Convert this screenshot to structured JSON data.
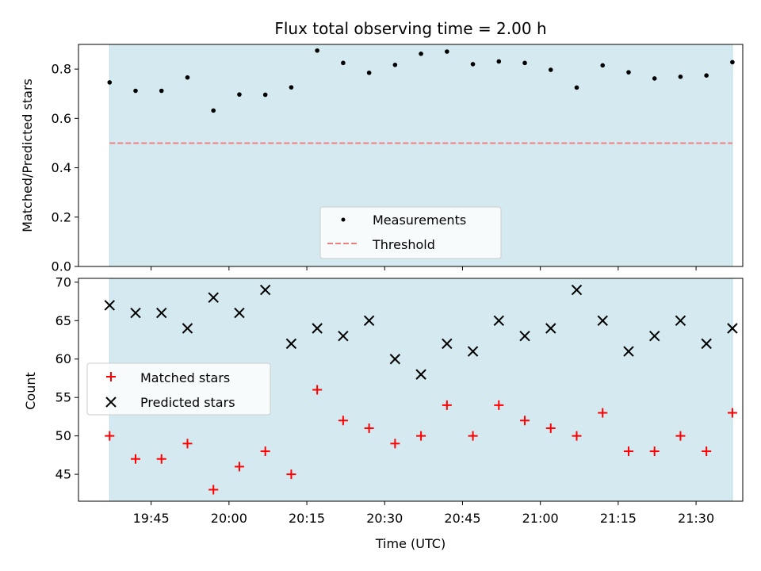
{
  "chart_data": [
    {
      "type": "scatter",
      "title": "Flux total observing time = 2.00 h",
      "xlabel": "",
      "ylabel": "Matched/Predicted stars",
      "ylim": [
        0,
        0.9
      ],
      "yticks": [
        "0.0",
        "0.2",
        "0.4",
        "0.6",
        "0.8"
      ],
      "observing_window": [
        "19:37",
        "21:37"
      ],
      "legend_position": "lower-center",
      "series": [
        {
          "name": "Measurements",
          "marker": "dot",
          "color": "#000000",
          "x": [
            "19:37",
            "19:42",
            "19:47",
            "19:52",
            "19:57",
            "20:02",
            "20:07",
            "20:12",
            "20:17",
            "20:22",
            "20:27",
            "20:32",
            "20:37",
            "20:42",
            "20:47",
            "20:52",
            "20:57",
            "21:02",
            "21:07",
            "21:12",
            "21:17",
            "21:22",
            "21:27",
            "21:32",
            "21:37"
          ],
          "values": [
            0.746,
            0.712,
            0.712,
            0.766,
            0.632,
            0.697,
            0.696,
            0.726,
            0.875,
            0.825,
            0.785,
            0.817,
            0.862,
            0.871,
            0.82,
            0.831,
            0.825,
            0.797,
            0.725,
            0.815,
            0.787,
            0.762,
            0.769,
            0.774,
            0.828
          ]
        },
        {
          "name": "Threshold",
          "marker": "dashed-line",
          "color": "#f08080",
          "x": [
            "19:37",
            "21:37"
          ],
          "values": [
            0.5,
            0.5
          ]
        }
      ]
    },
    {
      "type": "scatter",
      "title": "",
      "xlabel": "Time (UTC)",
      "ylabel": "Count",
      "ylim": [
        41.5,
        70.5
      ],
      "yticks": [
        "45",
        "50",
        "55",
        "60",
        "65",
        "70"
      ],
      "xticks": [
        "19:45",
        "20:00",
        "20:15",
        "20:30",
        "20:45",
        "21:00",
        "21:15",
        "21:30"
      ],
      "xlim": [
        "19:31",
        "21:39"
      ],
      "observing_window": [
        "19:37",
        "21:37"
      ],
      "legend_position": "center-left",
      "series": [
        {
          "name": "Matched stars",
          "marker": "plus",
          "color": "#ff0000",
          "x": [
            "19:37",
            "19:42",
            "19:47",
            "19:52",
            "19:57",
            "20:02",
            "20:07",
            "20:12",
            "20:17",
            "20:22",
            "20:27",
            "20:32",
            "20:37",
            "20:42",
            "20:47",
            "20:52",
            "20:57",
            "21:02",
            "21:07",
            "21:12",
            "21:17",
            "21:22",
            "21:27",
            "21:32",
            "21:37"
          ],
          "values": [
            50,
            47,
            47,
            49,
            43,
            46,
            48,
            45,
            56,
            52,
            51,
            49,
            50,
            54,
            50,
            54,
            52,
            51,
            50,
            53,
            48,
            48,
            50,
            48,
            53
          ]
        },
        {
          "name": "Predicted stars",
          "marker": "x",
          "color": "#000000",
          "x": [
            "19:37",
            "19:42",
            "19:47",
            "19:52",
            "19:57",
            "20:02",
            "20:07",
            "20:12",
            "20:17",
            "20:22",
            "20:27",
            "20:32",
            "20:37",
            "20:42",
            "20:47",
            "20:52",
            "20:57",
            "21:02",
            "21:07",
            "21:12",
            "21:17",
            "21:22",
            "21:27",
            "21:32",
            "21:37"
          ],
          "values": [
            67,
            66,
            66,
            64,
            68,
            66,
            69,
            62,
            64,
            63,
            65,
            60,
            58,
            62,
            61,
            65,
            63,
            64,
            69,
            65,
            61,
            63,
            65,
            62,
            64
          ]
        }
      ]
    }
  ],
  "colors": {
    "window_fill": "#d4eaf0",
    "window_edge": "#b9dde6"
  }
}
